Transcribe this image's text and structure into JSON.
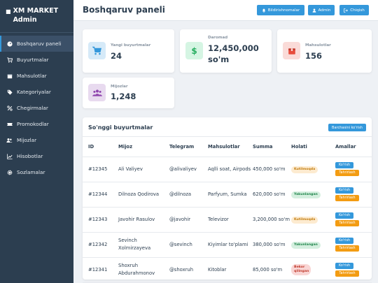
{
  "sidebar": {
    "brand_line1": "XM MARKET",
    "brand_line2": "Admin",
    "items": [
      {
        "label": "Boshqaruv paneli",
        "icon": "dashboard-icon"
      },
      {
        "label": "Buyurtmalar",
        "icon": "cart-icon"
      },
      {
        "label": "Mahsulotlar",
        "icon": "box-icon"
      },
      {
        "label": "Kategoriyalar",
        "icon": "tag-icon"
      },
      {
        "label": "Chegirmalar",
        "icon": "percent-icon"
      },
      {
        "label": "Promokodlar",
        "icon": "ticket-icon"
      },
      {
        "label": "Mijozlar",
        "icon": "users-icon"
      },
      {
        "label": "Hisobotlar",
        "icon": "chart-icon"
      },
      {
        "label": "Sozlamalar",
        "icon": "gear-icon"
      }
    ]
  },
  "header": {
    "title": "Boshqaruv paneli",
    "notifications_label": "Bildirishnomalar",
    "admin_label": "Admin",
    "logout_label": "Chiqish"
  },
  "stats": [
    {
      "label": "Yangi buyurtmalar",
      "value": "24",
      "icon": "cart-icon",
      "color": "#3498db",
      "bg": "#d6eaf8"
    },
    {
      "label": "Daromad",
      "value": "12,450,000 so'm",
      "icon": "dollar-icon",
      "color": "#27ae60",
      "bg": "#d5f5e3"
    },
    {
      "label": "Mahsulotlar",
      "value": "156",
      "icon": "box-icon",
      "color": "#e74c3c",
      "bg": "#fadbd8"
    },
    {
      "label": "Mijozlar",
      "value": "1,248",
      "icon": "users-icon",
      "color": "#8e44ad",
      "bg": "#e8daef"
    }
  ],
  "orders": {
    "title": "So'nggi buyurtmalar",
    "view_all_label": "Barchasini ko'rish",
    "columns": [
      "ID",
      "Mijoz",
      "Telegram",
      "Mahsulotlar",
      "Summa",
      "Holati",
      "Amallar"
    ],
    "view_label": "Ko'rish",
    "edit_label": "Tahrirlash",
    "rows": [
      {
        "id": "#12345",
        "customer": "Ali Valiyev",
        "telegram": "@alivaliyev",
        "products": "Aqlli soat, Airpods",
        "sum": "450,000 so'm",
        "status": "Kutilmoqda",
        "status_type": "new"
      },
      {
        "id": "#12344",
        "customer": "Dilnoza Qodirova",
        "telegram": "@dilnoza",
        "products": "Parfyum, Sumka",
        "sum": "620,000 so'm",
        "status": "Yakunlangan",
        "status_type": "done"
      },
      {
        "id": "#12343",
        "customer": "Javohir Rasulov",
        "telegram": "@javohir",
        "products": "Televizor",
        "sum": "3,200,000 so'm",
        "status": "Kutilmoqda",
        "status_type": "new"
      },
      {
        "id": "#12342",
        "customer": "Sevinch Xolmirzayeva",
        "telegram": "@sevinch",
        "products": "Kiyimlar to'plami",
        "sum": "380,000 so'm",
        "status": "Yakunlangan",
        "status_type": "done"
      },
      {
        "id": "#12341",
        "customer": "Shoxruh Abdurahmonov",
        "telegram": "@shoxruh",
        "products": "Kitoblar",
        "sum": "85,000 so'm",
        "status": "Bekor qilingan",
        "status_type": "cancel"
      }
    ]
  }
}
